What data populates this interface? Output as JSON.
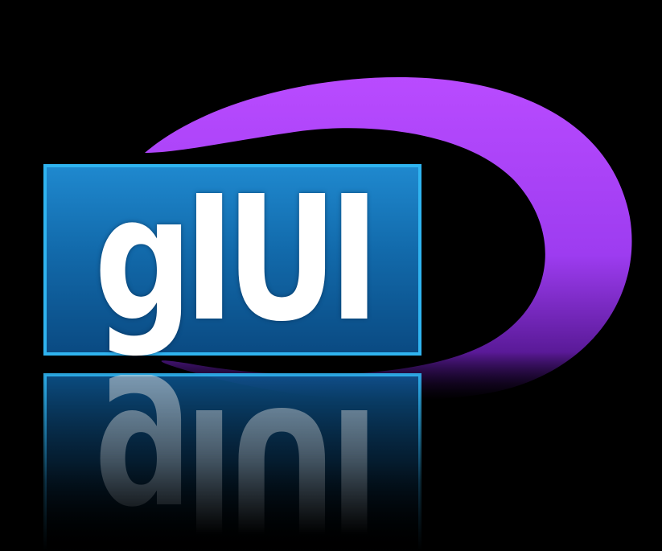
{
  "logo": {
    "text": "gIUI",
    "colors": {
      "background": "#000000",
      "box_fill_top": "#1b7fc6",
      "box_fill_bottom": "#0a4d85",
      "box_border": "#2fb4f0",
      "swoosh_top": "#b347ff",
      "swoosh_bottom": "#6a1fb0",
      "text": "#ffffff"
    },
    "shapes": [
      "swoosh-arc",
      "rounded-box",
      "reflection"
    ]
  }
}
